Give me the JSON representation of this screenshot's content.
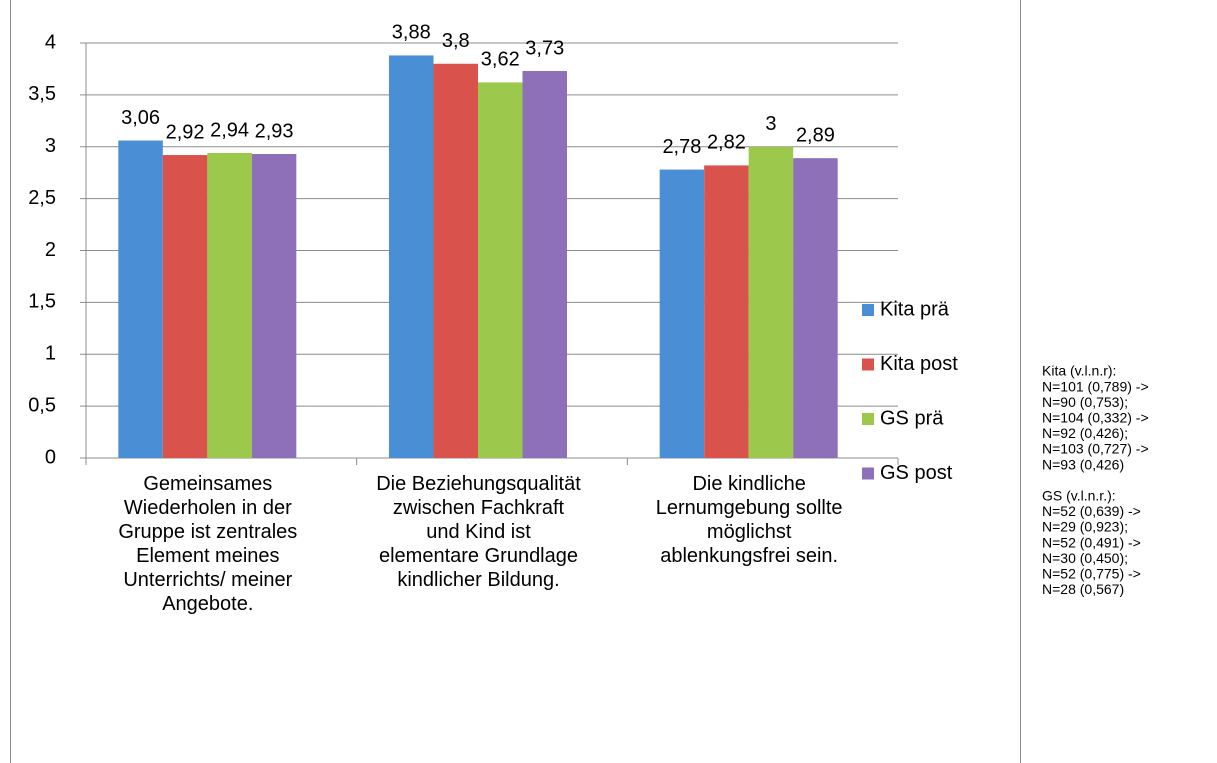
{
  "chart_data": {
    "type": "bar",
    "categories": [
      "Gemeinsames Wiederholen in der Gruppe ist zentrales Element meines Unterrichts/ meiner Angebote.",
      "Die Beziehungsqualität zwischen Fachkraft und Kind ist elementare Grundlage kindlicher Bildung.",
      "Die kindliche Lernumgebung sollte möglichst ablenkungsfrei sein."
    ],
    "series": [
      {
        "name": "Kita prä",
        "color": "#4a8fd6",
        "values": [
          3.06,
          3.88,
          2.78
        ],
        "value_labels": [
          "3,06",
          "3,88",
          "2,78"
        ]
      },
      {
        "name": "Kita post",
        "color": "#d9534c",
        "values": [
          2.92,
          3.8,
          2.82
        ],
        "value_labels": [
          "2,92",
          "3,8",
          "2,82"
        ]
      },
      {
        "name": "GS prä",
        "color": "#9cc84c",
        "values": [
          2.94,
          3.62,
          3
        ],
        "value_labels": [
          "2,94",
          "3,62",
          "3"
        ]
      },
      {
        "name": "GS post",
        "color": "#8e70b9",
        "values": [
          2.93,
          3.73,
          2.89
        ],
        "value_labels": [
          "2,93",
          "3,73",
          "2,89"
        ]
      }
    ],
    "ylim": [
      0,
      4
    ],
    "yticks": [
      0,
      {
        "value": 0.5,
        "label": "0,5"
      },
      1,
      {
        "value": 1.5,
        "label": "1,5"
      },
      2,
      {
        "value": 2.5,
        "label": "2,5"
      },
      3,
      {
        "value": 3.5,
        "label": "3,5"
      },
      4
    ],
    "grid": true,
    "legend": "right",
    "annotations": [
      [
        "Kita (v.l.n.r):",
        "N=101 (0,789) ->",
        "N=90 (0,753);",
        "N=104 (0,332) ->",
        "N=92 (0,426);",
        "N=103 (0,727) ->",
        "N=93 (0,426)"
      ],
      [
        "GS (v.l.n.r.):",
        "N=52 (0,639) ->",
        "N=29 (0,923);",
        "N=52 (0,491) ->",
        "N=30 (0,450);",
        "N=52 (0,775) ->",
        "N=28 (0,567)"
      ]
    ]
  }
}
